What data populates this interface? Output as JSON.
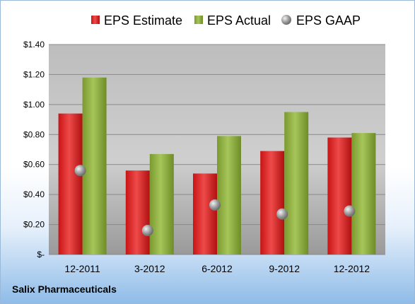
{
  "company": "Salix Pharmaceuticals",
  "colors": {
    "estimate": "#d42a2a",
    "actual": "#8cad3e",
    "gaap": "#a0a0a0",
    "plot_bg": "#c8c8c8"
  },
  "chart_data": {
    "type": "bar",
    "categories": [
      "12-2011",
      "3-2012",
      "6-2012",
      "9-2012",
      "12-2012"
    ],
    "series": [
      {
        "name": "EPS Estimate",
        "type": "bar",
        "values": [
          0.94,
          0.56,
          0.54,
          0.69,
          0.78
        ]
      },
      {
        "name": "EPS Actual",
        "type": "bar",
        "values": [
          1.18,
          0.67,
          0.79,
          0.95,
          0.81
        ]
      },
      {
        "name": "EPS GAAP",
        "type": "scatter",
        "values": [
          0.56,
          0.16,
          0.33,
          0.27,
          0.29
        ]
      }
    ],
    "ylim": [
      0,
      1.4
    ],
    "yticks": [
      0,
      0.2,
      0.4,
      0.6,
      0.8,
      1.0,
      1.2,
      1.4
    ],
    "ytick_labels": [
      "$-",
      "$0.20",
      "$0.40",
      "$0.60",
      "$0.80",
      "$1.00",
      "$1.20",
      "$1.40"
    ],
    "grid": true,
    "legend": "top-center"
  }
}
